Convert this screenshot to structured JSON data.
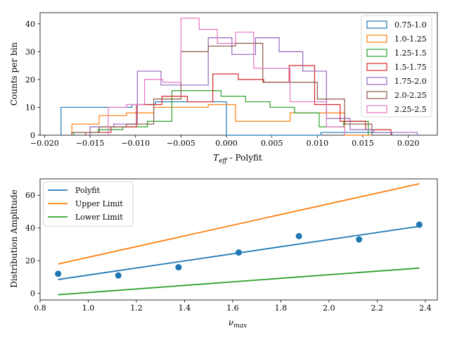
{
  "chart_data": [
    {
      "type": "step-histogram",
      "xlabel_main": "T",
      "xlabel_sub": "eff",
      "xlabel_rest": " - Polyfit",
      "ylabel": "Counts per bin",
      "xlim": [
        -0.0205,
        0.0232
      ],
      "ylim": [
        0,
        44
      ],
      "xticks": [
        -0.02,
        -0.015,
        -0.01,
        -0.005,
        0.0,
        0.005,
        0.01,
        0.015,
        0.02
      ],
      "xtick_labels": [
        "−0.020",
        "−0.015",
        "−0.010",
        "−0.005",
        "0.000",
        "0.005",
        "0.010",
        "0.015",
        "0.020"
      ],
      "yticks": [
        0,
        10,
        20,
        30,
        40
      ],
      "ytick_labels": [
        "0",
        "10",
        "20",
        "30",
        "40"
      ],
      "legend_position": "top-right",
      "series": [
        {
          "name": "0.75-1.0",
          "color": "#1f77b4",
          "edges": [
            -0.0182,
            -0.0156,
            -0.013,
            -0.0104,
            -0.0078,
            -0.0052,
            -0.0026,
            0.0,
            0.0026,
            0.0052,
            0.0078,
            0.0104,
            0.013,
            0.0156,
            0.0182
          ],
          "counts": [
            10,
            10,
            10,
            11,
            12,
            12,
            12,
            0,
            0,
            0,
            0,
            1,
            1,
            1
          ]
        },
        {
          "name": "1.0-1.25",
          "color": "#ff7f0e",
          "edges": [
            -0.017,
            -0.014,
            -0.011,
            -0.008,
            -0.005,
            -0.002,
            0.001,
            0.004,
            0.007,
            0.01,
            0.013,
            0.016
          ],
          "counts": [
            4,
            7,
            8,
            10,
            10,
            11,
            5,
            5,
            8,
            8,
            0
          ]
        },
        {
          "name": "1.25-1.5",
          "color": "#2ca02c",
          "edges": [
            -0.0168,
            -0.0141,
            -0.0114,
            -0.0087,
            -0.006,
            -0.0033,
            -0.0006,
            0.0021,
            0.0048,
            0.0075,
            0.0102,
            0.0129,
            0.0156
          ],
          "counts": [
            1,
            2,
            3,
            5,
            16,
            16,
            14,
            12,
            10,
            8,
            3,
            5
          ]
        },
        {
          "name": "1.5-1.75",
          "color": "#d62728",
          "edges": [
            -0.0155,
            -0.0127,
            -0.0099,
            -0.0071,
            -0.0043,
            -0.0015,
            0.0013,
            0.0041,
            0.0069,
            0.0097,
            0.0125,
            0.0153,
            0.0181
          ],
          "counts": [
            1,
            3,
            11,
            14,
            12,
            22,
            20,
            19,
            25,
            11,
            5,
            2
          ]
        },
        {
          "name": "1.75-2.0",
          "color": "#9467bd",
          "edges": [
            -0.015,
            -0.0124,
            -0.0098,
            -0.0072,
            -0.0046,
            -0.002,
            0.0006,
            0.0032,
            0.0058,
            0.0084,
            0.011,
            0.0136,
            0.0162,
            0.0188,
            0.021
          ],
          "counts": [
            3,
            4,
            23,
            18,
            18,
            35,
            29,
            35,
            30,
            23,
            6,
            2,
            1,
            1
          ]
        },
        {
          "name": "2.0-2.25",
          "color": "#8c564b",
          "edges": [
            -0.017,
            -0.014,
            -0.011,
            -0.008,
            -0.005,
            -0.002,
            0.001,
            0.004,
            0.007,
            0.01,
            0.013,
            0.016
          ],
          "counts": [
            1,
            3,
            4,
            13,
            30,
            32,
            33,
            19,
            19,
            13,
            4
          ]
        },
        {
          "name": "2.25-2.5",
          "color": "#e377c2",
          "edges": [
            -0.013,
            -0.011,
            -0.009,
            -0.007,
            -0.005,
            -0.003,
            -0.001,
            0.001,
            0.003,
            0.005,
            0.007,
            0.009,
            0.011,
            0.013
          ],
          "counts": [
            10,
            11,
            20,
            19,
            42,
            38,
            33,
            37,
            24,
            24,
            12,
            12,
            3
          ]
        }
      ]
    },
    {
      "type": "line+scatter",
      "xlabel_main": "ν",
      "xlabel_sub": "max",
      "ylabel": "Distribution Amplitude",
      "xlim": [
        0.8,
        2.45
      ],
      "ylim": [
        -4,
        70
      ],
      "xticks": [
        0.8,
        1.0,
        1.2,
        1.4,
        1.6,
        1.8,
        2.0,
        2.2,
        2.4
      ],
      "xtick_labels": [
        "0.8",
        "1.0",
        "1.2",
        "1.4",
        "1.6",
        "1.8",
        "2.0",
        "2.2",
        "2.4"
      ],
      "yticks": [
        0,
        20,
        40,
        60
      ],
      "ytick_labels": [
        "0",
        "20",
        "40",
        "60"
      ],
      "legend_position": "top-left",
      "series": [
        {
          "name": "Polyfit",
          "color": "#1f77b4",
          "x": [
            0.875,
            2.375
          ],
          "y": [
            8.5,
            41
          ]
        },
        {
          "name": "Upper Limit",
          "color": "#ff7f0e",
          "x": [
            0.875,
            2.375
          ],
          "y": [
            18,
            67
          ]
        },
        {
          "name": "Lower Limit",
          "color": "#2ca02c",
          "x": [
            0.875,
            2.375
          ],
          "y": [
            -0.8,
            15.5
          ]
        }
      ],
      "points": {
        "color": "#1f77b4",
        "x": [
          0.875,
          1.125,
          1.375,
          1.625,
          1.875,
          2.125,
          2.375
        ],
        "y": [
          12,
          11,
          16,
          25,
          35,
          33,
          42
        ]
      }
    }
  ]
}
